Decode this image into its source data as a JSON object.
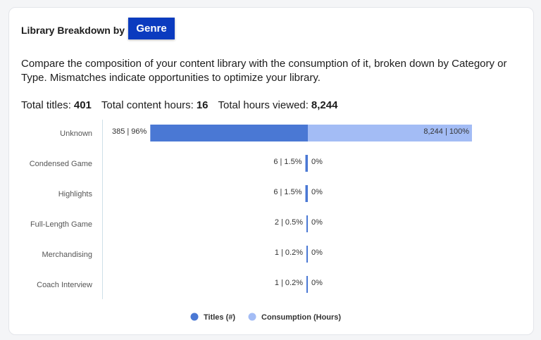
{
  "card": {
    "title": "Library Breakdown by",
    "dropdown": "Genre",
    "description": "Compare the composition of your content library with the consumption of it, broken down by Category or Type. Mismatches indicate opportunities to optimize your library.",
    "totals": [
      {
        "label": "Total titles:",
        "value": "401"
      },
      {
        "label": "Total content hours:",
        "value": "16"
      },
      {
        "label": "Total hours viewed:",
        "value": "8,244"
      }
    ]
  },
  "chart_data": {
    "type": "diverging-bar",
    "categories": [
      "Unknown",
      "Condensed Game",
      "Highlights",
      "Full-Length Game",
      "Merchandising",
      "Coach Interview"
    ],
    "xlim": [
      0,
      100
    ],
    "series": [
      {
        "name": "Titles (#)",
        "color": "#4a78d4",
        "side": "left",
        "values": [
          96,
          1.5,
          1.5,
          0.5,
          0.2,
          0.2
        ],
        "value_labels": [
          "385 | 96%",
          "6 | 1.5%",
          "6 | 1.5%",
          "2 | 0.5%",
          "1 | 0.2%",
          "1 | 0.2%"
        ]
      },
      {
        "name": "Consumption (Hours)",
        "color": "#a3bcf5",
        "side": "right",
        "values": [
          100,
          0,
          0,
          0,
          0,
          0
        ],
        "value_labels": [
          "8,244 | 100%",
          "0%",
          "0%",
          "0%",
          "0%",
          "0%"
        ]
      }
    ]
  }
}
